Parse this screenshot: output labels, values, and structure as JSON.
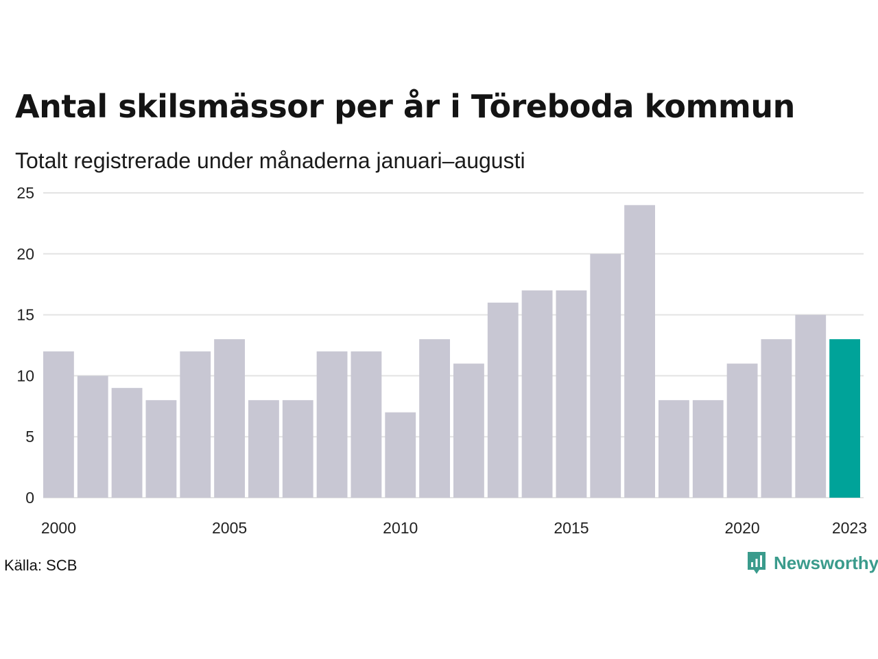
{
  "brand": {
    "name": "Newsworthy",
    "color": "#3a9b8c"
  },
  "source": "Källa: SCB",
  "colors": {
    "bar": "#c8c7d3",
    "highlight": "#00a399",
    "grid": "#e3e3e3"
  },
  "chart_data": {
    "type": "bar",
    "title": "Antal skilsmässor per år i Töreboda kommun",
    "subtitle": "Totalt registrerade under månaderna januari–augusti",
    "xlabel": "",
    "ylabel": "",
    "categories": [
      "2000",
      "2001",
      "2002",
      "2003",
      "2004",
      "2005",
      "2006",
      "2007",
      "2008",
      "2009",
      "2010",
      "2011",
      "2012",
      "2013",
      "2014",
      "2015",
      "2016",
      "2017",
      "2018",
      "2019",
      "2020",
      "2021",
      "2022",
      "2023"
    ],
    "values": [
      12,
      10,
      9,
      8,
      12,
      13,
      8,
      8,
      12,
      12,
      7,
      13,
      11,
      16,
      17,
      17,
      20,
      24,
      8,
      8,
      11,
      13,
      15,
      13
    ],
    "ylim": [
      0,
      25
    ],
    "yticks": [
      "0",
      "5",
      "10",
      "15",
      "20",
      "25"
    ],
    "xticks": [
      "2000",
      "2005",
      "2010",
      "2015",
      "2020",
      "2023"
    ],
    "highlight": "2023",
    "grid": true
  }
}
